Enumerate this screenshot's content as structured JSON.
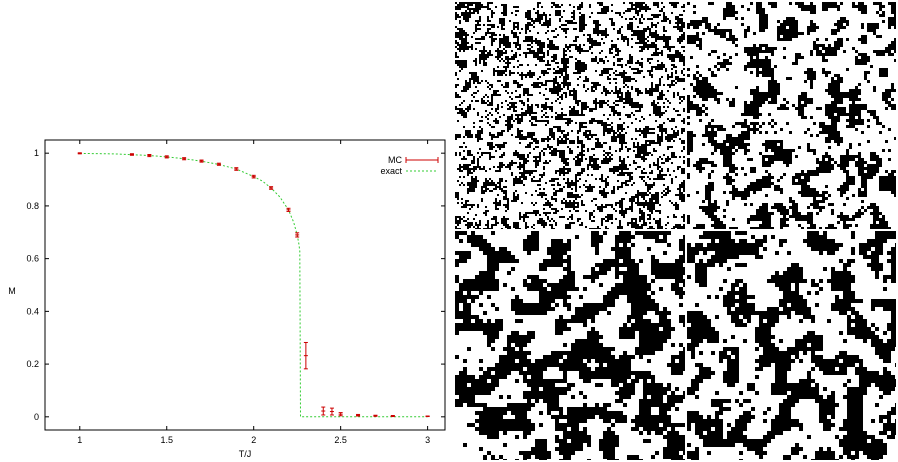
{
  "chart_data": {
    "type": "scatter",
    "xlabel": "T/J",
    "ylabel": "M",
    "xlim": [
      0.8,
      3.1
    ],
    "ylim": [
      -0.05,
      1.05
    ],
    "x_ticks": [
      1,
      1.5,
      2,
      2.5,
      3
    ],
    "y_ticks": [
      0,
      0.2,
      0.4,
      0.6,
      0.8,
      1
    ],
    "x_tick_labels": [
      "1",
      "1.5",
      "2",
      "2.5",
      "3"
    ],
    "y_tick_labels": [
      "0",
      "0.2",
      "0.4",
      "0.6",
      "0.8",
      "1"
    ],
    "grid": false,
    "legend_position": "top-right",
    "series": [
      {
        "name": "MC",
        "style": "points-with-errorbars",
        "color": "#cc0000",
        "points": [
          {
            "x": 1.0,
            "y": 0.9995,
            "err": 0.002
          },
          {
            "x": 1.3,
            "y": 0.995,
            "err": 0.003
          },
          {
            "x": 1.4,
            "y": 0.991,
            "err": 0.004
          },
          {
            "x": 1.5,
            "y": 0.986,
            "err": 0.004
          },
          {
            "x": 1.6,
            "y": 0.979,
            "err": 0.004
          },
          {
            "x": 1.7,
            "y": 0.97,
            "err": 0.004
          },
          {
            "x": 1.8,
            "y": 0.958,
            "err": 0.004
          },
          {
            "x": 1.9,
            "y": 0.94,
            "err": 0.005
          },
          {
            "x": 2.0,
            "y": 0.911,
            "err": 0.005
          },
          {
            "x": 2.1,
            "y": 0.868,
            "err": 0.005
          },
          {
            "x": 2.2,
            "y": 0.785,
            "err": 0.006
          },
          {
            "x": 2.25,
            "y": 0.69,
            "err": 0.008
          },
          {
            "x": 2.3,
            "y": 0.232,
            "err": 0.05
          },
          {
            "x": 2.4,
            "y": 0.022,
            "err": 0.015
          },
          {
            "x": 2.45,
            "y": 0.02,
            "err": 0.013
          },
          {
            "x": 2.5,
            "y": 0.01,
            "err": 0.006
          },
          {
            "x": 2.6,
            "y": 0.006,
            "err": 0.003
          },
          {
            "x": 2.7,
            "y": 0.004,
            "err": 0.002
          },
          {
            "x": 2.8,
            "y": 0.003,
            "err": 0.002
          },
          {
            "x": 3.0,
            "y": 0.002,
            "err": 0.001
          }
        ]
      },
      {
        "name": "exact",
        "style": "dashed-line",
        "color": "#33cc33",
        "points": [
          {
            "x": 1.0,
            "y": 0.9993
          },
          {
            "x": 1.2,
            "y": 0.9974
          },
          {
            "x": 1.4,
            "y": 0.9913
          },
          {
            "x": 1.5,
            "y": 0.986
          },
          {
            "x": 1.6,
            "y": 0.979
          },
          {
            "x": 1.7,
            "y": 0.9695
          },
          {
            "x": 1.8,
            "y": 0.957
          },
          {
            "x": 1.9,
            "y": 0.94
          },
          {
            "x": 2.0,
            "y": 0.911
          },
          {
            "x": 2.05,
            "y": 0.894
          },
          {
            "x": 2.1,
            "y": 0.868
          },
          {
            "x": 2.15,
            "y": 0.834
          },
          {
            "x": 2.2,
            "y": 0.785
          },
          {
            "x": 2.23,
            "y": 0.738
          },
          {
            "x": 2.25,
            "y": 0.69
          },
          {
            "x": 2.26,
            "y": 0.655
          },
          {
            "x": 2.265,
            "y": 0.628
          },
          {
            "x": 2.269,
            "y": 0.0
          },
          {
            "x": 3.0,
            "y": 0.0
          }
        ]
      }
    ]
  },
  "lattice_panel": {
    "panels": [
      {
        "name": "top-left",
        "cluster_scale": "fine",
        "white_fraction": 0.58
      },
      {
        "name": "top-right",
        "cluster_scale": "medium",
        "white_fraction": 0.55
      },
      {
        "name": "bottom-left",
        "cluster_scale": "coarse",
        "white_fraction": 0.5
      },
      {
        "name": "bottom-right",
        "cluster_scale": "coarse",
        "white_fraction": 0.5
      }
    ],
    "colors": {
      "up": "#ffffff",
      "down": "#000000",
      "divider": "#ffffff"
    }
  }
}
